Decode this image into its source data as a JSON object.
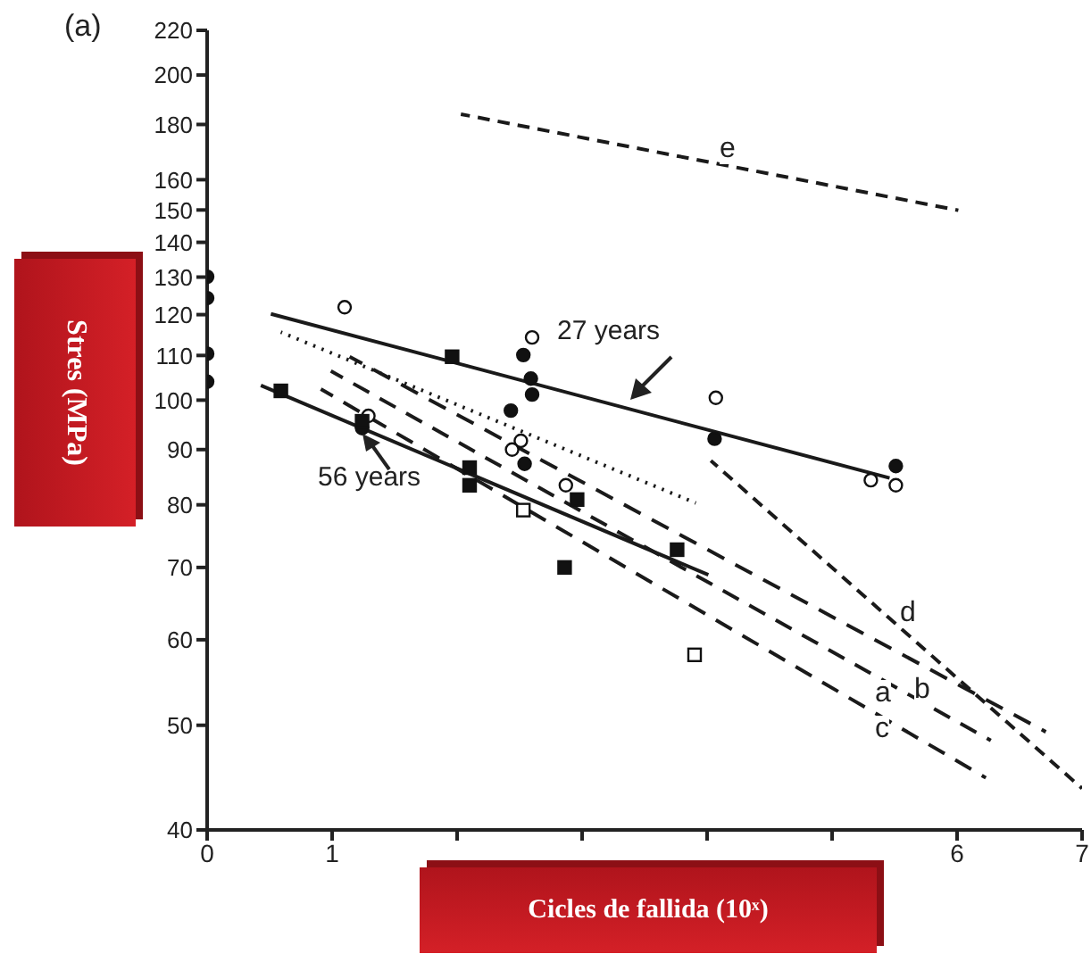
{
  "chart_data": {
    "type": "scatter",
    "xlabel": "Cicles de fallida (10ˣ)",
    "ylabel": "Stres (MPa)",
    "log": "y",
    "xlim": [
      0,
      7
    ],
    "xticks": [
      0,
      1,
      {
        "value": 2,
        "label": null
      },
      {
        "value": 3,
        "label": null
      },
      {
        "value": 4,
        "label": null
      },
      {
        "value": 5,
        "label": null
      },
      6,
      7
    ],
    "ylim": [
      40,
      220
    ],
    "yticks": [
      40,
      50,
      60,
      70,
      80,
      90,
      100,
      110,
      120,
      130,
      140,
      150,
      160,
      180,
      200,
      220
    ],
    "grid": false,
    "legend": false,
    "marker": "none",
    "annotations": [
      "(a)",
      "27 years",
      "56 years",
      "e",
      "d",
      "a",
      "b",
      "c"
    ],
    "series": [
      {
        "type": "line",
        "color": "#1a1a1a",
        "line_style": "solid",
        "x": [
          0.51,
          5.46
        ],
        "values": [
          120.2,
          84.7
        ]
      },
      {
        "type": "line",
        "color": "#1a1a1a",
        "line_style": "solid",
        "x": [
          0.43,
          4.01
        ],
        "values": [
          103.2,
          68.9
        ]
      },
      {
        "type": "line",
        "color": "#1a1a1a",
        "line_style": "dotted",
        "x": [
          0.59,
          3.91
        ],
        "values": [
          115.6,
          80.3
        ]
      },
      {
        "type": "line",
        "color": "#1a1a1a",
        "line_style": "dashed",
        "x": [
          2.03,
          6.01
        ],
        "values": [
          184,
          149.9
        ]
      },
      {
        "type": "line",
        "color": "#1a1a1a",
        "line_style": "dashed",
        "x": [
          4.03,
          7.0
        ],
        "values": [
          87.9,
          43.7
        ]
      },
      {
        "type": "line",
        "color": "#1a1a1a",
        "line_style": "dashed",
        "x": [
          0.99,
          6.27
        ],
        "values": [
          106.4,
          48.4
        ]
      },
      {
        "type": "line",
        "color": "#1a1a1a",
        "line_style": "dashed",
        "x": [
          1.14,
          6.71
        ],
        "values": [
          109.7,
          49.3
        ]
      },
      {
        "type": "line",
        "color": "#1a1a1a",
        "line_style": "dashed",
        "x": [
          0.91,
          6.23
        ],
        "values": [
          102.4,
          44.7
        ]
      },
      {
        "marker": "circle",
        "color": "#111111",
        "x": [
          0,
          0,
          0,
          0,
          2.53,
          2.59,
          2.6,
          2.43,
          4.06,
          2.54,
          1.24,
          5.51
        ],
        "values": [
          130.1,
          124.3,
          110.4,
          104,
          110.1,
          104.7,
          101.2,
          97.8,
          92.1,
          87.3,
          94.2,
          86.9
        ]
      },
      {
        "marker": "circle",
        "color": "#ffffff",
        "x": [
          1.1,
          2.6,
          4.07,
          5.51,
          5.31,
          2.51,
          2.44,
          2.87,
          1.29
        ],
        "values": [
          121.9,
          114.3,
          100.5,
          83.4,
          84.3,
          91.7,
          90,
          83.4,
          96.7
        ]
      },
      {
        "marker": "square",
        "color": "#111111",
        "x": [
          0.59,
          1.24,
          2.1,
          2.1,
          2.96,
          2.86,
          3.76,
          1.96
        ],
        "values": [
          102,
          95.6,
          86.6,
          83.4,
          80.9,
          70,
          72.7,
          109.7
        ]
      },
      {
        "marker": "square",
        "color": "#ffffff",
        "x": [
          2.53,
          3.9
        ],
        "values": [
          79.1,
          58.1
        ]
      }
    ]
  }
}
